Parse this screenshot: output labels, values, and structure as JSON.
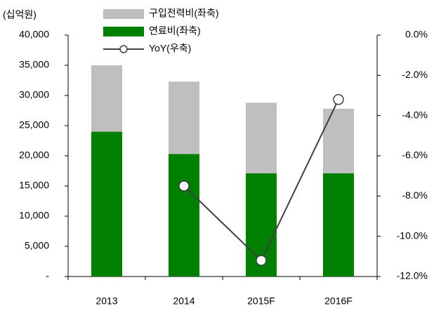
{
  "chart_data": {
    "type": "bar",
    "y_label": "(십억원)",
    "categories": [
      "2013",
      "2014",
      "2015F",
      "2016F"
    ],
    "series": [
      {
        "name": "구입전력비(좌축)",
        "color": "#bfbfbf",
        "values": [
          11000,
          12000,
          11700,
          10700
        ]
      },
      {
        "name": "연료비(좌축)",
        "color": "#008000",
        "values": [
          24000,
          20300,
          17100,
          17100
        ]
      },
      {
        "name": "YoY(우축)",
        "color": "#404040",
        "type": "line",
        "axis": "y2",
        "values": [
          null,
          -7.5,
          -11.2,
          -3.2
        ]
      }
    ],
    "ylim": [
      0,
      40000
    ],
    "yticks": [
      {
        "value": 0,
        "label": "-"
      },
      {
        "value": 5000,
        "label": "5,000"
      },
      {
        "value": 10000,
        "label": "10,000"
      },
      {
        "value": 15000,
        "label": "15,000"
      },
      {
        "value": 20000,
        "label": "20,000"
      },
      {
        "value": 25000,
        "label": "25,000"
      },
      {
        "value": 30000,
        "label": "30,000"
      },
      {
        "value": 35000,
        "label": "35,000"
      },
      {
        "value": 40000,
        "label": "40,000"
      }
    ],
    "y2lim": [
      -12,
      0
    ],
    "y2ticks": [
      {
        "value": 0,
        "label": "0.0%"
      },
      {
        "value": -2,
        "label": "-2.0%"
      },
      {
        "value": -4,
        "label": "-4.0%"
      },
      {
        "value": -6,
        "label": "-6.0%"
      },
      {
        "value": -8,
        "label": "-8.0%"
      },
      {
        "value": -10,
        "label": "-10.0%"
      },
      {
        "value": -12,
        "label": "-12.0%"
      }
    ],
    "legend": "top"
  }
}
